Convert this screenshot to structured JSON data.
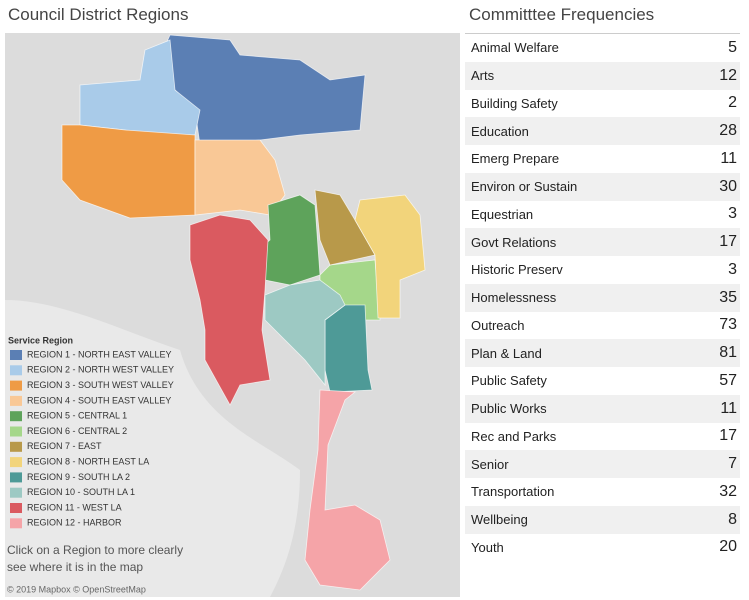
{
  "map": {
    "title": "Council District Regions",
    "legend": {
      "title": "Service Region",
      "items": [
        {
          "label": "REGION 1 - NORTH EAST VALLEY",
          "color": "#5b7fb4"
        },
        {
          "label": "REGION 2 - NORTH WEST VALLEY",
          "color": "#a9cbe9"
        },
        {
          "label": "REGION 3 - SOUTH WEST VALLEY",
          "color": "#ef9b45"
        },
        {
          "label": "REGION 4 - SOUTH EAST VALLEY",
          "color": "#f9c896"
        },
        {
          "label": "REGION 5 - CENTRAL 1",
          "color": "#5ea35b"
        },
        {
          "label": "REGION 6 - CENTRAL 2",
          "color": "#a5d78a"
        },
        {
          "label": "REGION 7 - EAST",
          "color": "#b8994a"
        },
        {
          "label": "REGION 8 - NORTH EAST LA",
          "color": "#f2d47b"
        },
        {
          "label": "REGION 9 - SOUTH LA 2",
          "color": "#4e9a97"
        },
        {
          "label": "REGION 10 - SOUTH LA 1",
          "color": "#9dc9c3"
        },
        {
          "label": "REGION 11 - WEST LA",
          "color": "#da5a60"
        },
        {
          "label": "REGION 12 - HARBOR",
          "color": "#f5a4a8"
        }
      ]
    },
    "note": [
      "Click on a Region to more clearly",
      "see where it is in the map"
    ],
    "attribution": "© 2019 Mapbox © OpenStreetMap"
  },
  "table": {
    "title": "Committtee Frequencies",
    "rows": [
      [
        "Animal Welfare",
        "5"
      ],
      [
        "Arts",
        "12"
      ],
      [
        "Building Safety",
        "2"
      ],
      [
        "Education",
        "28"
      ],
      [
        "Emerg Prepare",
        "11"
      ],
      [
        "Environ or Sustain",
        "30"
      ],
      [
        "Equestrian",
        "3"
      ],
      [
        "Govt Relations",
        "17"
      ],
      [
        "Historic Preserv",
        "3"
      ],
      [
        "Homelessness",
        "35"
      ],
      [
        "Outreach",
        "73"
      ],
      [
        "Plan & Land",
        "81"
      ],
      [
        "Public Safety",
        "57"
      ],
      [
        "Public Works",
        "11"
      ],
      [
        "Rec and Parks",
        "17"
      ],
      [
        "Senior",
        "7"
      ],
      [
        "Transportation",
        "32"
      ],
      [
        "Wellbeing",
        "8"
      ],
      [
        "Youth",
        "20"
      ]
    ]
  }
}
